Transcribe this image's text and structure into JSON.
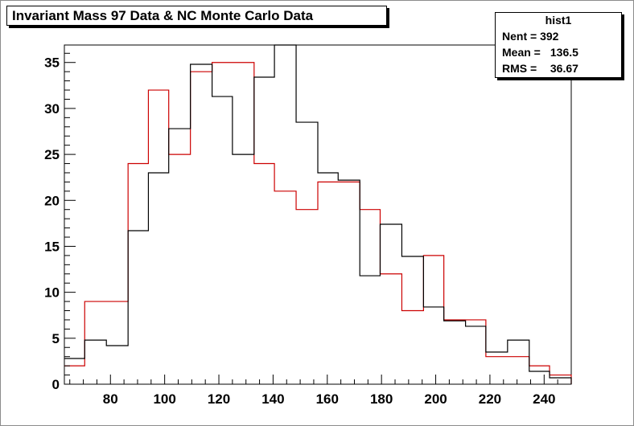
{
  "window": {
    "title": "Invariant Mass 97 Data & NC Monte Carlo Data"
  },
  "stats": {
    "name": "hist1",
    "rows": [
      {
        "label": "Nent = 392",
        "value": ""
      },
      {
        "label": "Mean  =",
        "value": "136.5"
      },
      {
        "label": "RMS   =",
        "value": "36.67"
      }
    ]
  },
  "colors": {
    "data": "#000000",
    "mc": "#cc0000",
    "frame": "#000000"
  },
  "chart_data": {
    "type": "histogram",
    "title": "Invariant Mass 97 Data & NC Monte Carlo Data",
    "xlim": [
      63,
      250
    ],
    "ylim": [
      0,
      36.9
    ],
    "xticks": [
      80,
      100,
      120,
      140,
      160,
      180,
      200,
      220,
      240
    ],
    "yticks": [
      0,
      5,
      10,
      15,
      20,
      25,
      30,
      35
    ],
    "bin_edges": [
      63,
      70.5,
      78.5,
      86.5,
      94,
      101.5,
      109.5,
      117.5,
      125,
      133,
      140.5,
      148.5,
      156.5,
      164,
      172,
      179.5,
      187.5,
      195.5,
      203,
      211,
      218.5,
      226.5,
      234.5,
      242,
      250
    ],
    "series": [
      {
        "name": "97 Data",
        "color": "#000000",
        "values": [
          2.8,
          4.8,
          4.2,
          16.7,
          23,
          27.8,
          34.8,
          31.3,
          25,
          33.4,
          36.9,
          28.5,
          23,
          22.2,
          11.8,
          17.4,
          13.9,
          8.4,
          6.9,
          6.3,
          3.5,
          4.8,
          1.4,
          0.7
        ]
      },
      {
        "name": "NC Monte Carlo",
        "color": "#cc0000",
        "values": [
          2,
          9,
          9,
          24,
          32,
          25,
          34,
          35,
          35,
          24,
          21,
          19,
          22,
          22,
          19,
          12,
          8,
          14,
          7,
          7,
          3,
          3,
          2,
          1
        ]
      }
    ]
  }
}
